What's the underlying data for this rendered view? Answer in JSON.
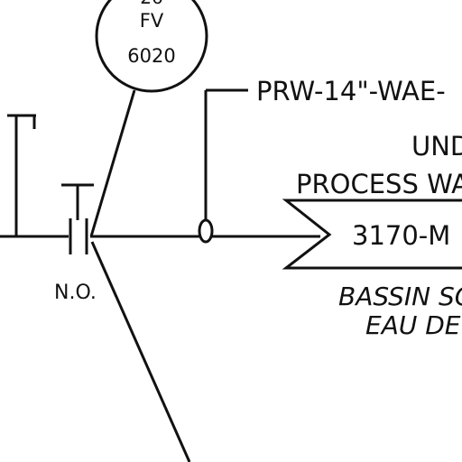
{
  "instrument": {
    "top_fragment": "26",
    "tag": "FV",
    "number": "6020"
  },
  "line_designation": "PRW-14\"-WAE-",
  "valve_state": "N.O.",
  "destination": {
    "title_line_1": "UND",
    "title_line_2": "PROCESS WAT",
    "reference": "3170-M",
    "french_line_1": "BASSIN SC",
    "french_line_2": "EAU DE"
  },
  "colors": {
    "ink": "#111111",
    "paper": "#ffffff"
  }
}
